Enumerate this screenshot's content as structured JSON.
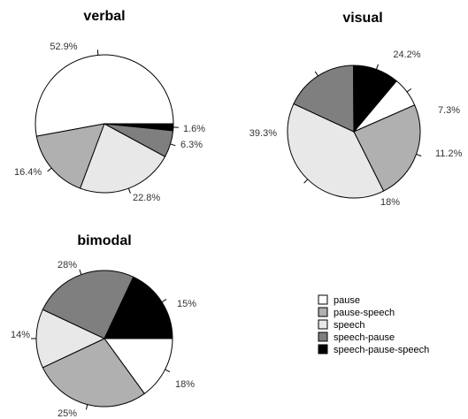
{
  "chart_data": [
    {
      "type": "pie",
      "title": "verbal",
      "series": [
        {
          "name": "pause",
          "value": 52.9,
          "label": "52.9%"
        },
        {
          "name": "pause-speech",
          "value": 16.4,
          "label": "16.4%"
        },
        {
          "name": "speech",
          "value": 22.8,
          "label": "22.8%"
        },
        {
          "name": "speech-pause",
          "value": 6.3,
          "label": "6.3%"
        },
        {
          "name": "speech-pause-speech",
          "value": 1.6,
          "label": "1.6%"
        }
      ]
    },
    {
      "type": "pie",
      "title": "visual",
      "series": [
        {
          "name": "pause",
          "value": 7.3,
          "label": "7.3%"
        },
        {
          "name": "pause-speech",
          "value": 24.2,
          "label": "24.2%"
        },
        {
          "name": "speech",
          "value": 39.3,
          "label": "39.3%"
        },
        {
          "name": "speech-pause",
          "value": 18,
          "label": "18%"
        },
        {
          "name": "speech-pause-speech",
          "value": 11.2,
          "label": "11.2%"
        }
      ]
    },
    {
      "type": "pie",
      "title": "bimodal",
      "series": [
        {
          "name": "pause",
          "value": 15,
          "label": "15%"
        },
        {
          "name": "pause-speech",
          "value": 28,
          "label": "28%"
        },
        {
          "name": "speech",
          "value": 14,
          "label": "14%"
        },
        {
          "name": "speech-pause",
          "value": 25,
          "label": "25%"
        },
        {
          "name": "speech-pause-speech",
          "value": 18,
          "label": "18%"
        }
      ]
    }
  ],
  "legend": [
    {
      "label": "pause",
      "color": "#ffffff"
    },
    {
      "label": "pause-speech",
      "color": "#b0b0b0"
    },
    {
      "label": "speech",
      "color": "#e8e8e8"
    },
    {
      "label": "speech-pause",
      "color": "#7f7f7f"
    },
    {
      "label": "speech-pause-speech",
      "color": "#000000"
    }
  ]
}
